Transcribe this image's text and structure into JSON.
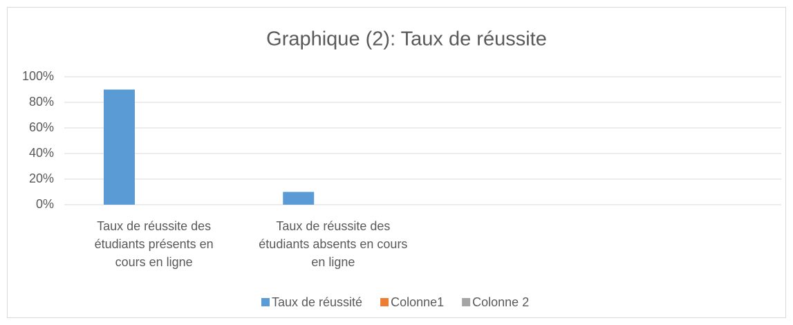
{
  "chart_data": {
    "type": "bar",
    "title": "Graphique (2): Taux de réussite",
    "categories": [
      "Taux de réussite des étudiants présents en cours en ligne",
      "Taux de réussite des étudiants absents en cours  en ligne",
      null,
      null
    ],
    "series": [
      {
        "name": "Taux de réussité",
        "color": "#5b9bd5",
        "values": [
          90,
          10,
          null,
          null
        ]
      },
      {
        "name": "Colonne1",
        "color": "#ed7d31",
        "values": [
          null,
          null,
          null,
          null
        ]
      },
      {
        "name": "Colonne 2",
        "color": "#a5a5a5",
        "values": [
          null,
          null,
          null,
          null
        ]
      }
    ],
    "ylim": [
      0,
      100
    ],
    "yticks": [
      {
        "value": 0,
        "label": "0%"
      },
      {
        "value": 20,
        "label": "20%"
      },
      {
        "value": 40,
        "label": "40%"
      },
      {
        "value": 60,
        "label": "60%"
      },
      {
        "value": 80,
        "label": "80%"
      },
      {
        "value": 100,
        "label": "100%"
      }
    ],
    "grid": true,
    "legend": "bottom"
  }
}
